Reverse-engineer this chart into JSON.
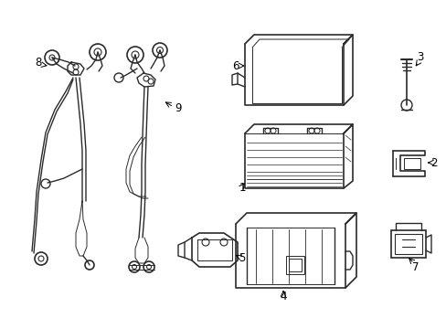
{
  "bg_color": "#ffffff",
  "line_color": "#2a2a2a",
  "figsize": [
    4.89,
    3.6
  ],
  "dpi": 100,
  "label_fs": 8,
  "xlim": [
    0,
    489
  ],
  "ylim": [
    0,
    360
  ]
}
